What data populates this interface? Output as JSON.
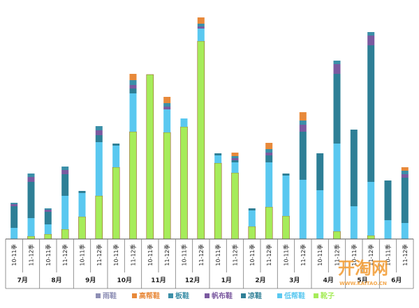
{
  "chart_data": {
    "type": "bar",
    "stacked": true,
    "title": "",
    "xlabel": "",
    "ylabel": "",
    "ylim": [
      0,
      340
    ],
    "grid": false,
    "legend_position": "bottom",
    "month_groups": [
      {
        "label": "7月",
        "categories": [
          "10-11季",
          "11-12季"
        ]
      },
      {
        "label": "8月",
        "categories": [
          "10-11季",
          "11-12季"
        ]
      },
      {
        "label": "9月",
        "categories": [
          "10-11季",
          "11-12季"
        ]
      },
      {
        "label": "10月",
        "categories": [
          "10-11季",
          "11-12季"
        ]
      },
      {
        "label": "11月",
        "categories": [
          "10-11季",
          "11-12季"
        ]
      },
      {
        "label": "12月",
        "categories": [
          "10-11季",
          "11-12季"
        ]
      },
      {
        "label": "1月",
        "categories": [
          "10-11季",
          "11-12季"
        ]
      },
      {
        "label": "2月",
        "categories": [
          "10-11季",
          "11-12季"
        ]
      },
      {
        "label": "3月",
        "categories": [
          "10-11季",
          "11-12季"
        ]
      },
      {
        "label": "4月",
        "categories": [
          "10-11季",
          "11-12季"
        ]
      },
      {
        "label": "5月",
        "categories": [
          "10-11季",
          "11-12季"
        ]
      },
      {
        "label": "6月",
        "categories": [
          "10-11季",
          "11-12季"
        ]
      }
    ],
    "series": [
      {
        "name": "雨鞋",
        "color": "#8e8fb5",
        "values": [
          0,
          0,
          0,
          0,
          0,
          0,
          0,
          0,
          0,
          0,
          0,
          0,
          0,
          0,
          0,
          0,
          0,
          0,
          0,
          0,
          0,
          0,
          0,
          0
        ]
      },
      {
        "name": "高帮鞋",
        "color": "#e8893a",
        "values": [
          0,
          0,
          0,
          0,
          0,
          0,
          0,
          9,
          0,
          9,
          0,
          9,
          0,
          5,
          0,
          9,
          0,
          12,
          0,
          0,
          0,
          0,
          0,
          5
        ]
      },
      {
        "name": "板鞋",
        "color": "#3b8fa8",
        "values": [
          2,
          5,
          2,
          5,
          0,
          6,
          0,
          7,
          0,
          5,
          0,
          4,
          0,
          3,
          0,
          5,
          0,
          6,
          0,
          5,
          0,
          5,
          0,
          5
        ]
      },
      {
        "name": "帆布鞋",
        "color": "#7b5aa0",
        "values": [
          3,
          7,
          3,
          6,
          0,
          7,
          0,
          5,
          0,
          4,
          0,
          3,
          0,
          3,
          0,
          4,
          0,
          10,
          0,
          14,
          0,
          14,
          0,
          5
        ]
      },
      {
        "name": "凉鞋",
        "color": "#2e7f96",
        "values": [
          31,
          52,
          18,
          31,
          3,
          10,
          3,
          7,
          0,
          0,
          0,
          0,
          3,
          3,
          3,
          10,
          3,
          69,
          53,
          100,
          110,
          196,
          57,
          65
        ]
      },
      {
        "name": "低帮鞋",
        "color": "#5ac8f0",
        "values": [
          16,
          26,
          14,
          48,
          34,
          77,
          31,
          55,
          0,
          33,
          12,
          18,
          11,
          15,
          23,
          64,
          58,
          85,
          70,
          126,
          47,
          77,
          27,
          23
        ]
      },
      {
        "name": "靴子",
        "color": "#a6ec5a",
        "values": [
          0,
          4,
          7,
          14,
          32,
          62,
          103,
          154,
          236,
          153,
          161,
          284,
          109,
          95,
          18,
          46,
          33,
          0,
          0,
          11,
          0,
          5,
          0,
          0
        ]
      }
    ]
  },
  "watermark": {
    "brand": "开淘网",
    "url": "WWW.KAITAO.CN"
  }
}
